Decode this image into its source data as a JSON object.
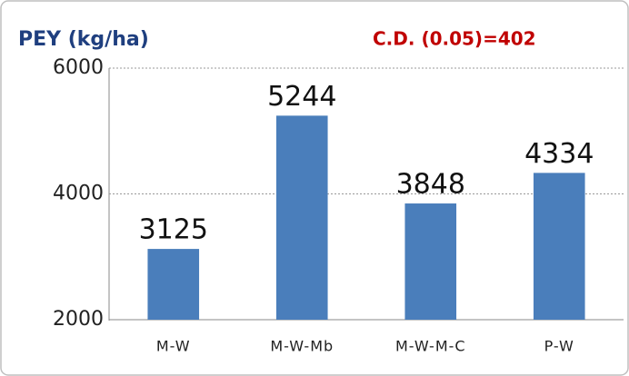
{
  "chart_data": {
    "type": "bar",
    "title": "PEY (kg/ha)",
    "annotation": "C.D. (0.05)=402",
    "categories": [
      "M-W",
      "M-W-Mb",
      "M-W-M-C",
      "P-W"
    ],
    "values": [
      3125,
      5244,
      3848,
      4334
    ],
    "color": "#4a7ebb",
    "ylim": [
      2000,
      6000
    ],
    "yticks": [
      2000,
      4000,
      6000
    ],
    "grid": true
  }
}
